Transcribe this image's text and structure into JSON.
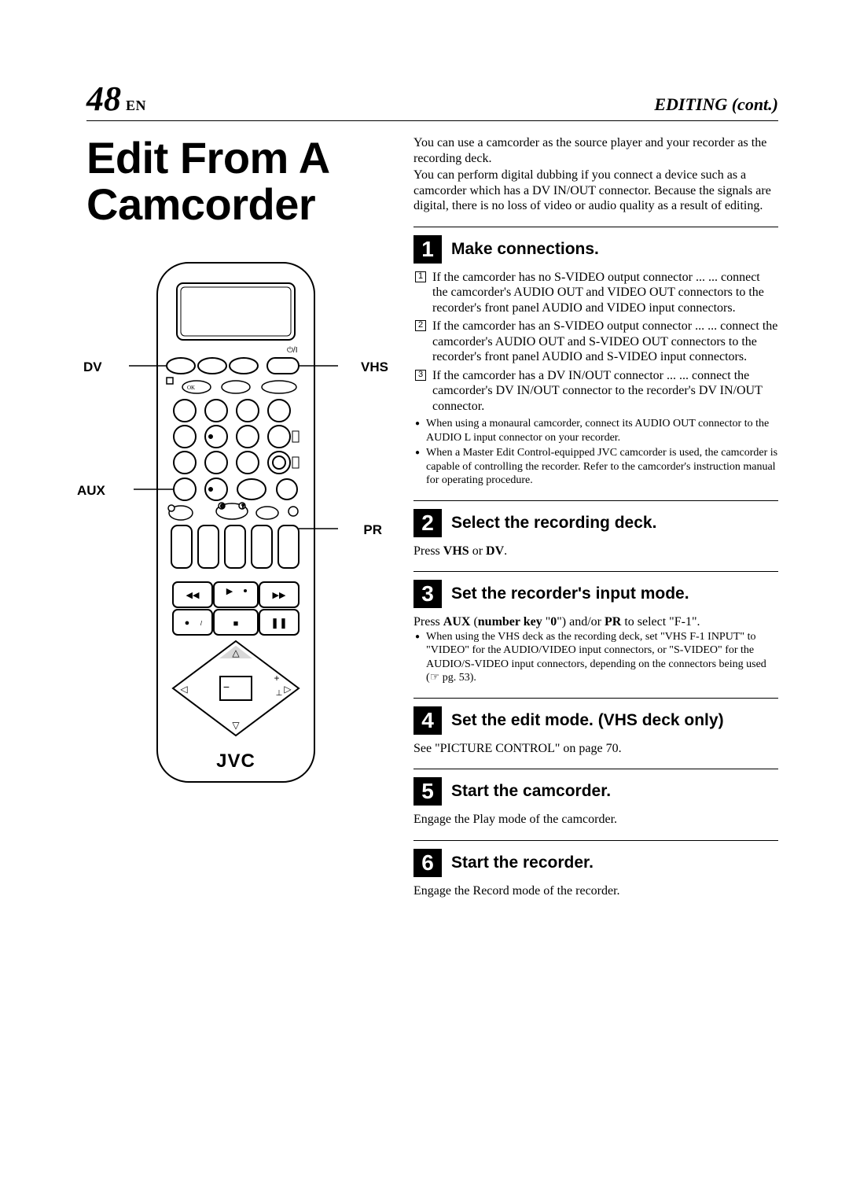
{
  "header": {
    "page_number": "48",
    "lang": "EN",
    "section": "EDITING (cont.)"
  },
  "title": "Edit From A Camcorder",
  "remote_labels": {
    "dv": "DV",
    "vhs": "VHS",
    "aux": "AUX",
    "pr": "PR",
    "brand": "JVC"
  },
  "intro": {
    "p1": "You can use a camcorder as the source player and your recorder as the recording deck.",
    "p2": "You can perform digital dubbing if you connect a device such as a camcorder which has a DV IN/OUT connector. Because the signals are digital, there is no loss of video or audio quality as a result of editing."
  },
  "steps": [
    {
      "num": "1",
      "title": "Make connections.",
      "numbered": [
        "If the camcorder has no S-VIDEO output connector ... ... connect the camcorder's AUDIO OUT and VIDEO OUT connectors to the recorder's front panel AUDIO and VIDEO input connectors.",
        "If the camcorder has an S-VIDEO output connector ... ... connect the camcorder's AUDIO OUT and S-VIDEO OUT connectors to the recorder's front panel AUDIO and S-VIDEO input connectors.",
        "If the camcorder has a DV IN/OUT connector ... ... connect the camcorder's DV IN/OUT connector to the recorder's DV IN/OUT connector."
      ],
      "bullets": [
        "When using a monaural camcorder, connect its AUDIO OUT connector to the AUDIO L input connector on your recorder.",
        "When a Master Edit Control-equipped JVC camcorder is used, the camcorder is capable of controlling the recorder. Refer to the camcorder's instruction manual for operating procedure."
      ]
    },
    {
      "num": "2",
      "title": "Select the recording deck.",
      "body_html": "Press <span class='b'>VHS</span> or <span class='b'>DV</span>."
    },
    {
      "num": "3",
      "title": "Set the recorder's input mode.",
      "body_html": "Press <span class='b'>AUX</span> (<span class='b'>number key</span> \"<span class='b'>0</span>\") and/or <span class='b'>PR</span> to select \"F-1\".",
      "bullets": [
        "When using the VHS deck as the recording deck, set \"VHS F-1 INPUT\" to \"VIDEO\" for the AUDIO/VIDEO input connectors, or \"S-VIDEO\" for the AUDIO/S-VIDEO input connectors, depending on the connectors being used (☞ pg. 53)."
      ]
    },
    {
      "num": "4",
      "title": "Set the edit mode. (VHS deck only)",
      "body_html": "See \"PICTURE CONTROL\" on page 70."
    },
    {
      "num": "5",
      "title": "Start the camcorder.",
      "body_html": "Engage the Play mode of the camcorder."
    },
    {
      "num": "6",
      "title": "Start the recorder.",
      "body_html": "Engage the Record mode of the recorder."
    }
  ]
}
